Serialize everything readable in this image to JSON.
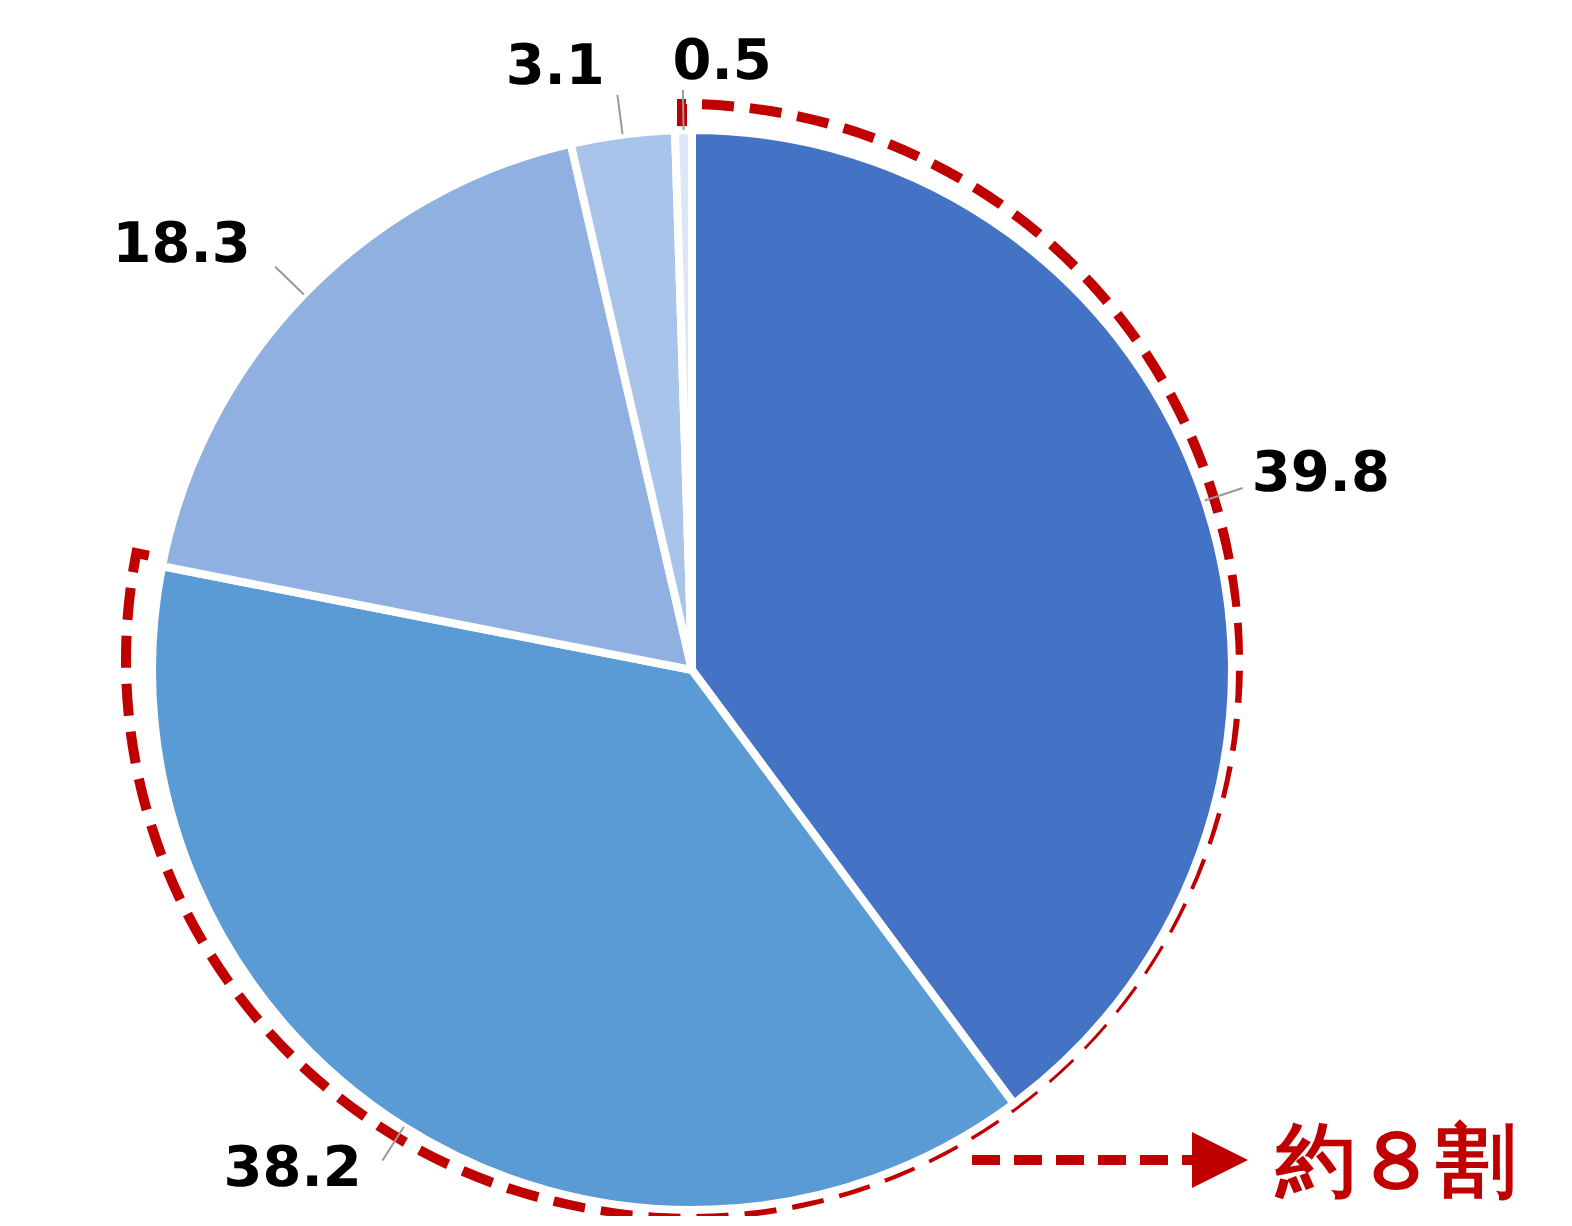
{
  "chart_data": {
    "type": "pie",
    "categories": [
      null,
      null,
      null,
      null,
      null
    ],
    "values": [
      39.8,
      38.2,
      18.3,
      3.1,
      0.5
    ],
    "colors": [
      "#4472c4",
      "#5b9bd5",
      "#8fb0e0",
      "#a9c4ea",
      "#dce6f4"
    ],
    "data_labels": true,
    "annotations": [
      "約８割"
    ]
  }
}
